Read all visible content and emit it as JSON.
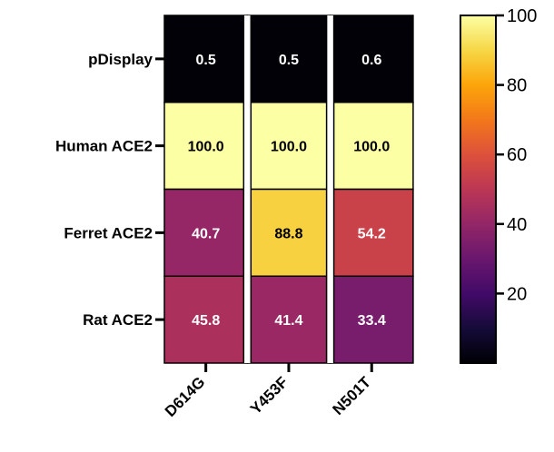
{
  "chart_data": {
    "type": "heatmap",
    "rows": [
      "pDisplay",
      "Human ACE2",
      "Ferret ACE2",
      "Rat ACE2"
    ],
    "columns": [
      "D614G",
      "Y453F",
      "N501T"
    ],
    "values": [
      [
        0.5,
        0.5,
        0.6
      ],
      [
        100.0,
        100.0,
        100.0
      ],
      [
        40.7,
        88.8,
        54.2
      ],
      [
        45.8,
        41.4,
        33.4
      ]
    ],
    "value_labels": [
      [
        "0.5",
        "0.5",
        "0.6"
      ],
      [
        "100.0",
        "100.0",
        "100.0"
      ],
      [
        "40.7",
        "88.8",
        "54.2"
      ],
      [
        "45.8",
        "41.4",
        "33.4"
      ]
    ],
    "colormap": "inferno",
    "colorbar": {
      "range": [
        0,
        100
      ],
      "ticks": [
        20,
        40,
        60,
        80,
        100
      ]
    },
    "title": "",
    "xlabel": "",
    "ylabel": ""
  }
}
